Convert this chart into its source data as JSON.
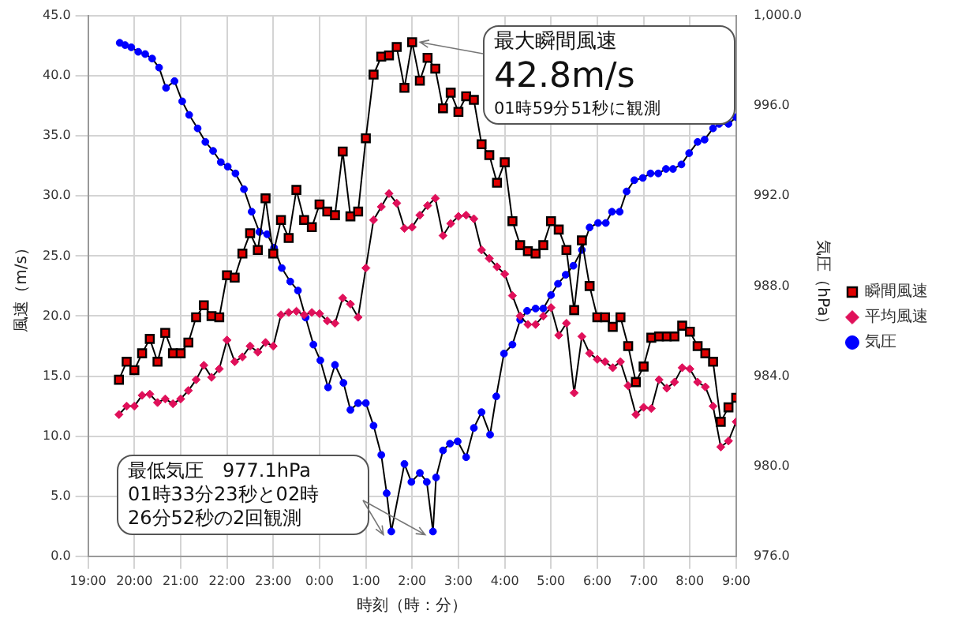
{
  "chart_data": {
    "type": "line",
    "xlabel": "時刻（時：分）",
    "ylabel": "風速（m/s）",
    "y2label": "気圧（hPa）",
    "annotations": [
      {
        "text": "最大瞬間風速\n42.8m/s\n01時59分51秒に観測",
        "x": "2000-01-02T02:00",
        "y": 42.8
      },
      "最低気圧　977.1hPa\n01時33分23秒と02時\n26分52秒の2回観測"
    ],
    "x": [
      "2000-01-01T19:40",
      "2000-01-01T19:50",
      "2000-01-01T20:00",
      "2000-01-01T20:10",
      "2000-01-01T20:20",
      "2000-01-01T20:30",
      "2000-01-01T20:40",
      "2000-01-01T20:50",
      "2000-01-01T21:00",
      "2000-01-01T21:10",
      "2000-01-01T21:20",
      "2000-01-01T21:30",
      "2000-01-01T21:40",
      "2000-01-01T21:50",
      "2000-01-01T22:00",
      "2000-01-01T22:10",
      "2000-01-01T22:20",
      "2000-01-01T22:30",
      "2000-01-01T22:40",
      "2000-01-01T22:50",
      "2000-01-01T23:00",
      "2000-01-01T23:10",
      "2000-01-01T23:20",
      "2000-01-01T23:30",
      "2000-01-01T23:40",
      "2000-01-01T23:50",
      "2000-01-02T00:00",
      "2000-01-02T00:10",
      "2000-01-02T00:20",
      "2000-01-02T00:30",
      "2000-01-02T00:40",
      "2000-01-02T00:50",
      "2000-01-02T01:00",
      "2000-01-02T01:10",
      "2000-01-02T01:20",
      "2000-01-02T01:30",
      "2000-01-02T01:40",
      "2000-01-02T01:50",
      "2000-01-02T02:00",
      "2000-01-02T02:10",
      "2000-01-02T02:20",
      "2000-01-02T02:30",
      "2000-01-02T02:40",
      "2000-01-02T02:50",
      "2000-01-02T03:00",
      "2000-01-02T03:10",
      "2000-01-02T03:20",
      "2000-01-02T03:30",
      "2000-01-02T03:40",
      "2000-01-02T03:50",
      "2000-01-02T04:00",
      "2000-01-02T04:10",
      "2000-01-02T04:20",
      "2000-01-02T04:30",
      "2000-01-02T04:40",
      "2000-01-02T04:50",
      "2000-01-02T05:00",
      "2000-01-02T05:10",
      "2000-01-02T05:20",
      "2000-01-02T05:30",
      "2000-01-02T05:40",
      "2000-01-02T05:50",
      "2000-01-02T06:00",
      "2000-01-02T06:10",
      "2000-01-02T06:20",
      "2000-01-02T06:30",
      "2000-01-02T06:40",
      "2000-01-02T06:50",
      "2000-01-02T07:00",
      "2000-01-02T07:10",
      "2000-01-02T07:20",
      "2000-01-02T07:30",
      "2000-01-02T07:40",
      "2000-01-02T07:50",
      "2000-01-02T08:00",
      "2000-01-02T08:10",
      "2000-01-02T08:20",
      "2000-01-02T08:30",
      "2000-01-02T08:40",
      "2000-01-02T08:50",
      "2000-01-02T09:00"
    ],
    "series": [
      {
        "name": "瞬間風速",
        "color": "#e00000",
        "marker": "square",
        "values": [
          14.7,
          16.2,
          15.5,
          16.9,
          18.1,
          16.2,
          18.6,
          16.9,
          16.9,
          17.8,
          19.9,
          20.9,
          20.0,
          19.9,
          23.4,
          23.2,
          25.2,
          26.9,
          25.5,
          29.8,
          25.2,
          28.0,
          26.5,
          30.5,
          28.0,
          27.4,
          29.3,
          28.7,
          28.4,
          33.7,
          28.3,
          28.7,
          34.8,
          40.1,
          41.6,
          41.7,
          42.4,
          39.0,
          42.8,
          39.6,
          41.5,
          40.6,
          37.3,
          38.6,
          37.0,
          38.3,
          38.0,
          34.3,
          33.4,
          31.1,
          32.8,
          27.9,
          25.9,
          25.4,
          25.2,
          25.9,
          27.9,
          27.2,
          25.5,
          20.5,
          26.3,
          22.5,
          19.9,
          19.9,
          19.1,
          19.9,
          17.5,
          14.5,
          15.8,
          18.2,
          18.3,
          18.3,
          18.3,
          19.2,
          18.7,
          17.5,
          16.9,
          16.2,
          11.2,
          12.4,
          13.2
        ]
      },
      {
        "name": "平均風速",
        "color": "#e0105a",
        "marker": "diamond",
        "values": [
          11.8,
          12.5,
          12.5,
          13.4,
          13.5,
          12.8,
          13.1,
          12.7,
          13.1,
          13.8,
          14.7,
          15.9,
          14.9,
          15.6,
          18.0,
          16.2,
          16.6,
          17.5,
          17.0,
          17.8,
          17.5,
          20.1,
          20.3,
          20.4,
          20.1,
          20.3,
          20.2,
          19.6,
          19.4,
          21.5,
          21.0,
          19.9,
          24.0,
          28.0,
          29.1,
          30.2,
          29.4,
          27.3,
          27.4,
          28.4,
          29.2,
          29.8,
          26.7,
          27.7,
          28.3,
          28.4,
          28.1,
          25.5,
          24.8,
          24.1,
          23.5,
          21.7,
          20.0,
          19.3,
          19.3,
          20.0,
          20.7,
          18.4,
          19.4,
          13.6,
          18.3,
          16.9,
          16.4,
          16.2,
          15.7,
          16.2,
          14.2,
          11.8,
          12.4,
          12.3,
          14.7,
          14.0,
          14.5,
          15.7,
          15.6,
          14.5,
          14.1,
          12.5,
          9.1,
          9.6,
          11.2
        ]
      },
      {
        "name": "気圧",
        "color": "#0000ff",
        "marker": "circle",
        "axis": "y2",
        "x": [
          "2000-01-01T19:41",
          "2000-01-01T19:48",
          "2000-01-01T19:56",
          "2000-01-01T20:05",
          "2000-01-01T20:14",
          "2000-01-01T20:23",
          "2000-01-01T20:32",
          "2000-01-01T20:41",
          "2000-01-01T20:52",
          "2000-01-01T21:02",
          "2000-01-01T21:11",
          "2000-01-01T21:22",
          "2000-01-01T21:32",
          "2000-01-01T21:42",
          "2000-01-01T21:52",
          "2000-01-01T22:01",
          "2000-01-01T22:11",
          "2000-01-01T22:22",
          "2000-01-01T22:32",
          "2000-01-01T22:42",
          "2000-01-01T22:52",
          "2000-01-01T23:01",
          "2000-01-01T23:11",
          "2000-01-01T23:22",
          "2000-01-01T23:32",
          "2000-01-01T23:42",
          "2000-01-01T23:52",
          "2000-01-02T00:01",
          "2000-01-02T00:11",
          "2000-01-02T00:20",
          "2000-01-02T00:31",
          "2000-01-02T00:40",
          "2000-01-02T00:50",
          "2000-01-02T01:00",
          "2000-01-02T01:10",
          "2000-01-02T01:20",
          "2000-01-02T01:27",
          "2000-01-02T01:33",
          "2000-01-02T01:50",
          "2000-01-02T01:59",
          "2000-01-02T02:10",
          "2000-01-02T02:19",
          "2000-01-02T02:27",
          "2000-01-02T02:31",
          "2000-01-02T02:40",
          "2000-01-02T02:49",
          "2000-01-02T02:59",
          "2000-01-02T03:10",
          "2000-01-02T03:20",
          "2000-01-02T03:30",
          "2000-01-02T03:41",
          "2000-01-02T03:49",
          "2000-01-02T03:59",
          "2000-01-02T04:10",
          "2000-01-02T04:20",
          "2000-01-02T04:29",
          "2000-01-02T04:40",
          "2000-01-02T04:50",
          "2000-01-02T05:00",
          "2000-01-02T05:09",
          "2000-01-02T05:19",
          "2000-01-02T05:29",
          "2000-01-02T05:40",
          "2000-01-02T05:50",
          "2000-01-02T06:01",
          "2000-01-02T06:11",
          "2000-01-02T06:19",
          "2000-01-02T06:29",
          "2000-01-02T06:38",
          "2000-01-02T06:48",
          "2000-01-02T06:59",
          "2000-01-02T07:09",
          "2000-01-02T07:19",
          "2000-01-02T07:29",
          "2000-01-02T07:38",
          "2000-01-02T07:49",
          "2000-01-02T07:59",
          "2000-01-02T08:10",
          "2000-01-02T08:19",
          "2000-01-02T08:30",
          "2000-01-02T08:38",
          "2000-01-02T08:50",
          "2000-01-02T09:00"
        ],
        "values": [
          998.8,
          998.7,
          998.6,
          998.4,
          998.3,
          998.1,
          997.7,
          996.8,
          997.1,
          996.2,
          995.6,
          995.0,
          994.4,
          994.0,
          993.5,
          993.3,
          993.0,
          992.3,
          991.3,
          990.4,
          990.3,
          989.7,
          988.8,
          988.2,
          987.8,
          986.6,
          985.4,
          984.7,
          983.5,
          984.5,
          983.7,
          982.5,
          982.8,
          982.8,
          981.8,
          980.5,
          978.8,
          977.1,
          980.1,
          979.3,
          979.7,
          979.3,
          977.1,
          979.5,
          980.7,
          981.0,
          981.1,
          980.4,
          981.7,
          982.4,
          981.4,
          983.1,
          985.0,
          985.4,
          986.5,
          986.9,
          987.0,
          987.0,
          987.6,
          988.1,
          988.5,
          988.9,
          989.6,
          990.6,
          990.8,
          990.8,
          991.3,
          991.3,
          992.2,
          992.7,
          992.8,
          993.0,
          993.0,
          993.2,
          993.2,
          993.4,
          993.9,
          994.4,
          994.5,
          995.0,
          995.2,
          995.2,
          995.5
        ]
      }
    ],
    "xlim": [
      "2000-01-01T19:00",
      "2000-01-02T09:00"
    ],
    "xticks": [
      {
        "value": "2000-01-01T19:00",
        "label": "19:00"
      },
      {
        "value": "2000-01-01T20:00",
        "label": "20:00"
      },
      {
        "value": "2000-01-01T21:00",
        "label": "21:00"
      },
      {
        "value": "2000-01-01T22:00",
        "label": "22:00"
      },
      {
        "value": "2000-01-01T23:00",
        "label": "23:00"
      },
      {
        "value": "2000-01-02T00:00",
        "label": "0:00"
      },
      {
        "value": "2000-01-02T01:00",
        "label": "1:00"
      },
      {
        "value": "2000-01-02T02:00",
        "label": "2:00"
      },
      {
        "value": "2000-01-02T03:00",
        "label": "3:00"
      },
      {
        "value": "2000-01-02T04:00",
        "label": "4:00"
      },
      {
        "value": "2000-01-02T05:00",
        "label": "5:00"
      },
      {
        "value": "2000-01-02T06:00",
        "label": "6:00"
      },
      {
        "value": "2000-01-02T07:00",
        "label": "7:00"
      },
      {
        "value": "2000-01-02T08:00",
        "label": "8:00"
      },
      {
        "value": "2000-01-02T09:00",
        "label": "9:00"
      }
    ],
    "ylim": [
      0,
      45
    ],
    "yticks": [
      {
        "value": 0,
        "label": "0.0"
      },
      {
        "value": 5,
        "label": "5.0"
      },
      {
        "value": 10,
        "label": "10.0"
      },
      {
        "value": 15,
        "label": "15.0"
      },
      {
        "value": 20,
        "label": "20.0"
      },
      {
        "value": 25,
        "label": "25.0"
      },
      {
        "value": 30,
        "label": "30.0"
      },
      {
        "value": 35,
        "label": "35.0"
      },
      {
        "value": 40,
        "label": "40.0"
      },
      {
        "value": 45,
        "label": "45.0"
      }
    ],
    "y2lim": [
      976,
      1000
    ],
    "y2ticks": [
      {
        "value": 976,
        "label": "976.0"
      },
      {
        "value": 980,
        "label": "980.0"
      },
      {
        "value": 984,
        "label": "984.0"
      },
      {
        "value": 988,
        "label": "988.0"
      },
      {
        "value": 992,
        "label": "992.0"
      },
      {
        "value": 996,
        "label": "996.0"
      },
      {
        "value": 1000,
        "label": "1,000.0"
      }
    ],
    "grid": true,
    "legend": "right"
  }
}
